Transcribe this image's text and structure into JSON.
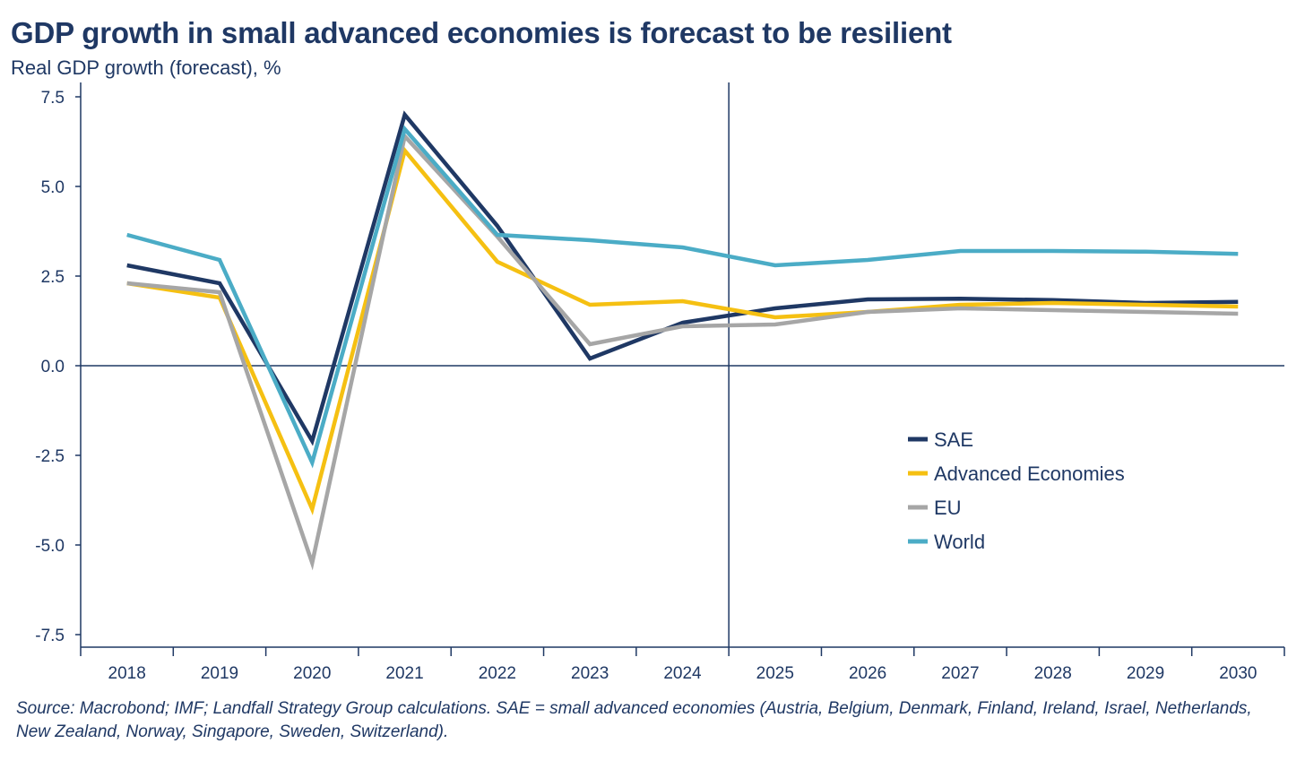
{
  "chart_data": {
    "type": "line",
    "title": "GDP growth in small advanced economies is forecast to be resilient",
    "subtitle": "Real GDP growth (forecast), %",
    "x": [
      "2018",
      "2019",
      "2020",
      "2021",
      "2022",
      "2023",
      "2024",
      "2025",
      "2026",
      "2027",
      "2028",
      "2029",
      "2030"
    ],
    "yticks": [
      "7.5",
      "5.0",
      "2.5",
      "0.0",
      "-2.5",
      "-5.0",
      "-7.5"
    ],
    "ylim": [
      -7.8,
      7.8
    ],
    "forecast_marker_between": [
      "2024",
      "2025"
    ],
    "zero_line": true,
    "legend_position": "right-middle",
    "series": [
      {
        "name": "SAE",
        "color": "#1f3864",
        "values": [
          2.8,
          2.3,
          -2.1,
          7.0,
          3.9,
          0.2,
          1.2,
          1.6,
          1.85,
          1.87,
          1.83,
          1.75,
          1.78
        ]
      },
      {
        "name": "Advanced Economies",
        "color": "#f5c012",
        "values": [
          2.3,
          1.9,
          -4.0,
          6.0,
          2.9,
          1.7,
          1.8,
          1.35,
          1.5,
          1.7,
          1.75,
          1.7,
          1.65
        ]
      },
      {
        "name": "EU",
        "color": "#a6a6a6",
        "values": [
          2.3,
          2.05,
          -5.5,
          6.4,
          3.6,
          0.6,
          1.1,
          1.15,
          1.5,
          1.6,
          1.55,
          1.5,
          1.45
        ]
      },
      {
        "name": "World",
        "color": "#4bacc6",
        "values": [
          3.65,
          2.95,
          -2.7,
          6.6,
          3.65,
          3.5,
          3.3,
          2.8,
          2.95,
          3.2,
          3.2,
          3.18,
          3.12
        ]
      }
    ]
  },
  "source": "Source: Macrobond; IMF; Landfall Strategy Group calculations. SAE = small advanced economies (Austria, Belgium, Denmark, Finland, Ireland, Israel, Netherlands, New Zealand, Norway, Singapore, Sweden, Switzerland)."
}
